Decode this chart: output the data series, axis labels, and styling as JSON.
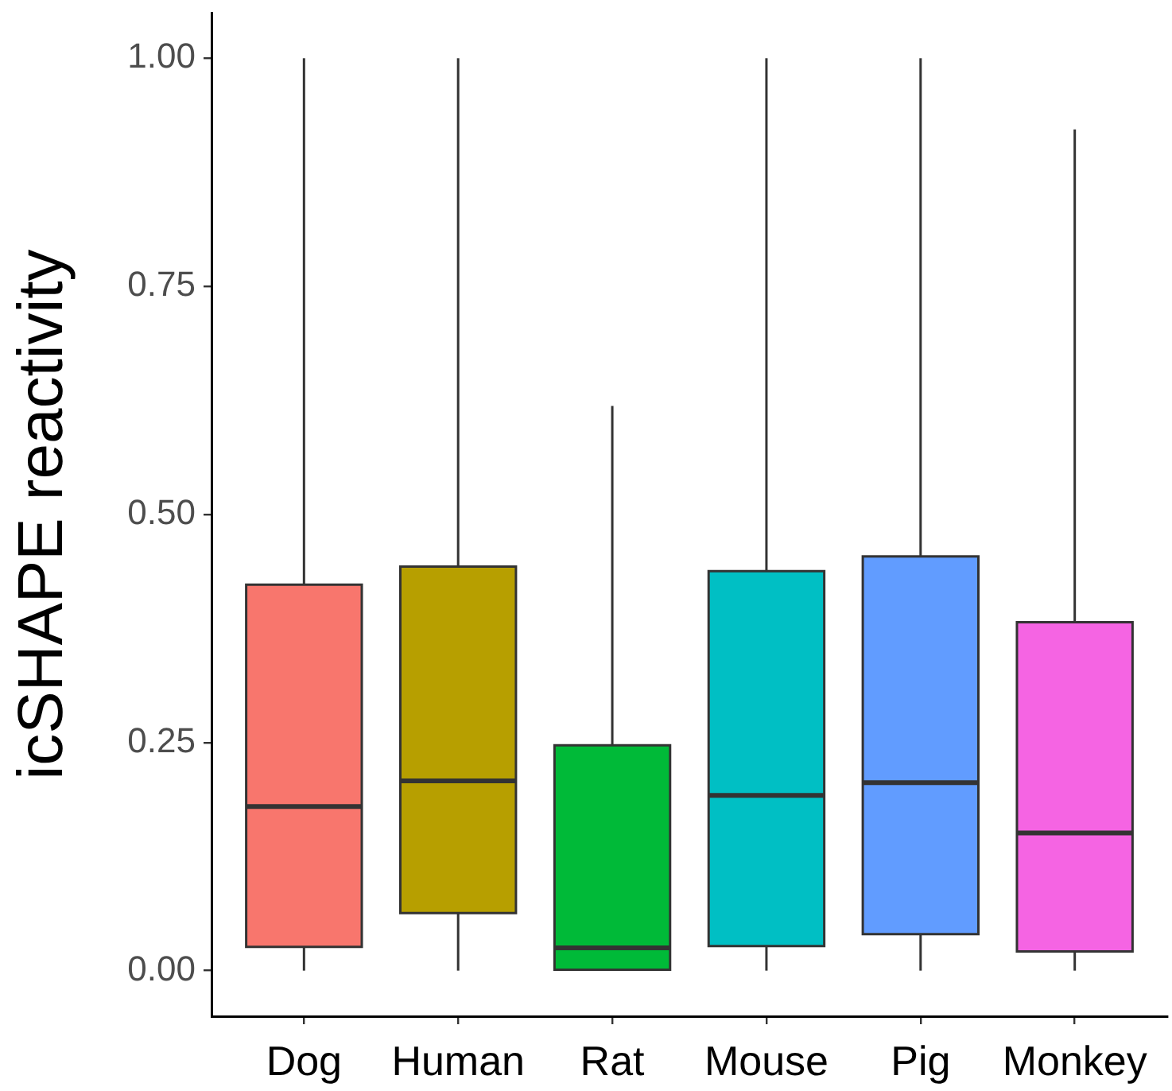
{
  "chart_data": {
    "type": "box",
    "ylabel": "icSHAPE reactivity",
    "categories": [
      "Dog",
      "Human",
      "Rat",
      "Mouse",
      "Pig",
      "Monkey"
    ],
    "colors": [
      "#f8766d",
      "#b79f00",
      "#00ba38",
      "#00bfc4",
      "#619cff",
      "#f564e3"
    ],
    "boxes": [
      {
        "low": 0,
        "q1": 0.026,
        "median": 0.18,
        "q3": 0.423,
        "high": 1
      },
      {
        "low": 0,
        "q1": 0.063,
        "median": 0.208,
        "q3": 0.443,
        "high": 1
      },
      {
        "low": 0,
        "q1": 0,
        "median": 0.025,
        "q3": 0.247,
        "high": 0.619
      },
      {
        "low": 0,
        "q1": 0.027,
        "median": 0.192,
        "q3": 0.438,
        "high": 1
      },
      {
        "low": 0,
        "q1": 0.04,
        "median": 0.206,
        "q3": 0.454,
        "high": 1
      },
      {
        "low": 0,
        "q1": 0.021,
        "median": 0.151,
        "q3": 0.382,
        "high": 0.922
      }
    ],
    "ylim": [
      -0.05,
      1.05
    ],
    "yticks": [
      {
        "value": 0,
        "label": "0.00"
      },
      0.25,
      {
        "value": 0.5,
        "label": "0.50"
      },
      0.75,
      {
        "value": 1,
        "label": "1.00"
      }
    ]
  }
}
